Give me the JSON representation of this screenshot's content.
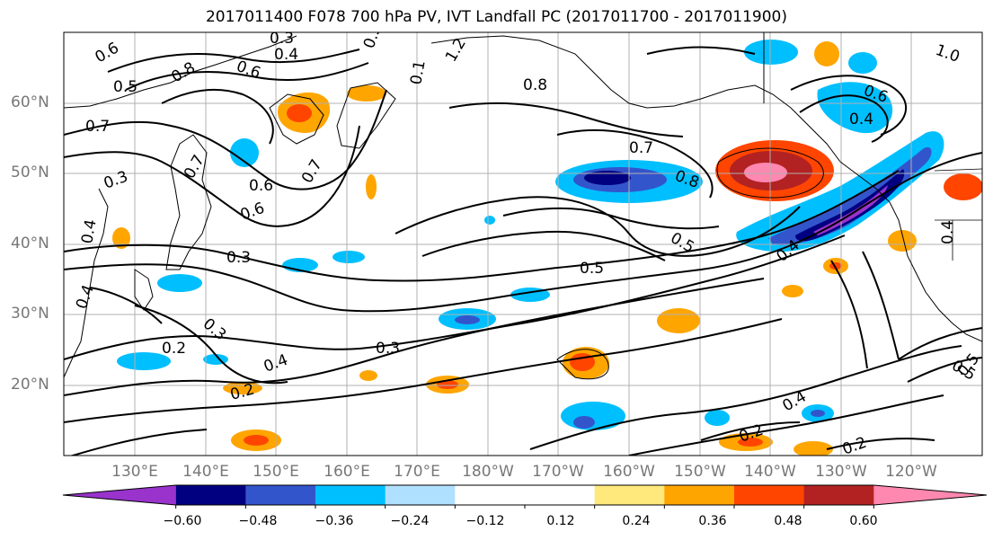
{
  "title": "2017011400 F078 700 hPa PV, IVT Landfall PC (2017011700 - 2017011900)",
  "lat_labels": [
    "60°N",
    "50°N",
    "40°N",
    "30°N",
    "20°N"
  ],
  "lon_labels": [
    "130°E",
    "140°E",
    "150°E",
    "160°E",
    "170°E",
    "180°W",
    "170°W",
    "160°W",
    "150°W",
    "140°W",
    "130°W",
    "120°W"
  ],
  "colorbar": {
    "colors": [
      "#9933cc",
      "#000080",
      "#3355cc",
      "#00bfff",
      "#b0e0ff",
      "#ffffff",
      "#ffffff",
      "#ffe87c",
      "#ffa500",
      "#ff4500",
      "#b22222",
      "#ff88b0"
    ],
    "tick_labels": [
      "−0.60",
      "−0.48",
      "−0.36",
      "−0.24",
      "−0.12",
      "0.12",
      "0.24",
      "0.36",
      "0.48",
      "0.60"
    ]
  },
  "contour_labels": [
    "0.6",
    "0.3",
    "0.4",
    "0.5",
    "0.1",
    "1.2",
    "1.0",
    "0.5",
    "0.8",
    "0.6",
    "0.7",
    "0.8",
    "0.6",
    "0.4",
    "0.3",
    "0.7",
    "0.6",
    "0.4",
    "0.7",
    "0.7",
    "0.8",
    "0.6",
    "0.5",
    "0.3",
    "0.5",
    "0.4",
    "0.4",
    "0.3",
    "0.2",
    "0.3",
    "0.4",
    "0.2",
    "0.4",
    "0.2",
    "0.2",
    "0.5",
    "0.5",
    "0.4"
  ],
  "colors": {
    "contour": "#000000",
    "grid": "#b0b0b0",
    "coast": "#000000",
    "axis_labels": "#777777"
  }
}
